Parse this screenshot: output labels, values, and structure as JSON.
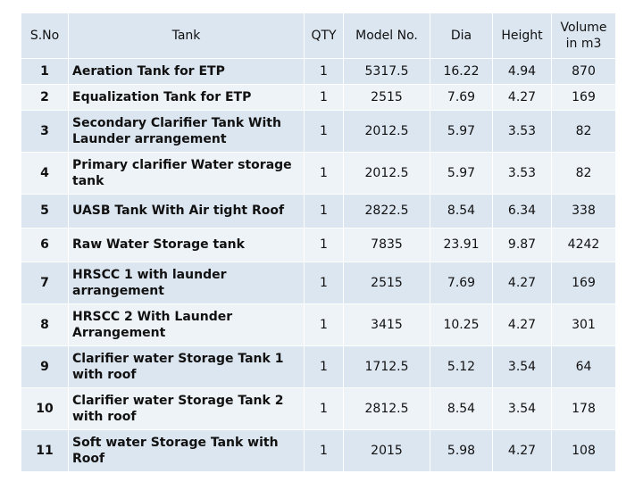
{
  "table": {
    "headers": [
      "S.No",
      "Tank",
      "QTY",
      "Model No.",
      "Dia",
      "Height",
      "Volume in m3"
    ],
    "rows": [
      [
        "1",
        "Aeration Tank for ETP",
        "1",
        "5317.5",
        "16.22",
        "4.94",
        "870"
      ],
      [
        "2",
        "Equalization Tank for ETP",
        "1",
        "2515",
        "7.69",
        "4.27",
        "169"
      ],
      [
        "3",
        "Secondary Clarifier Tank With Launder arrangement",
        "1",
        "2012.5",
        "5.97",
        "3.53",
        "82"
      ],
      [
        "4",
        "Primary clarifier Water storage tank",
        "1",
        "2012.5",
        "5.97",
        "3.53",
        "82"
      ],
      [
        "5",
        "UASB Tank With Air tight Roof",
        "1",
        "2822.5",
        "8.54",
        "6.34",
        "338"
      ],
      [
        "6",
        "Raw Water Storage tank",
        "1",
        "7835",
        "23.91",
        "9.87",
        "4242"
      ],
      [
        "7",
        "HRSCC 1 with launder arrangement",
        "1",
        "2515",
        "7.69",
        "4.27",
        "169"
      ],
      [
        "8",
        "HRSCC 2 With Launder Arrangement",
        "1",
        "3415",
        "10.25",
        "4.27",
        "301"
      ],
      [
        "9",
        "Clarifier water Storage Tank 1 with roof",
        "1",
        "1712.5",
        "5.12",
        "3.54",
        "64"
      ],
      [
        "10",
        "Clarifier water Storage Tank 2 with roof",
        "1",
        "2812.5",
        "8.54",
        "3.54",
        "178"
      ],
      [
        "11",
        "Soft water Storage Tank with Roof",
        "1",
        "2015",
        "5.98",
        "4.27",
        "108"
      ]
    ]
  }
}
